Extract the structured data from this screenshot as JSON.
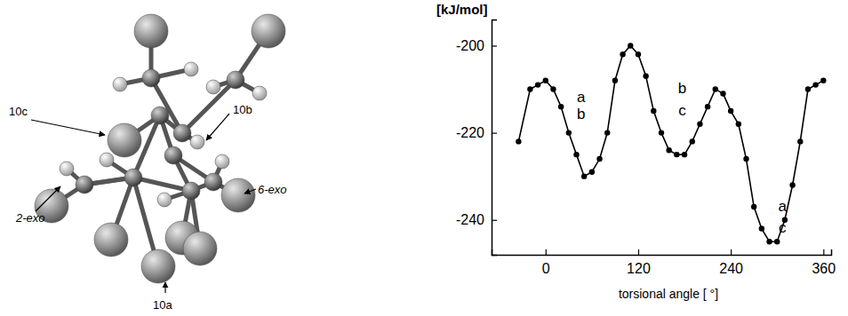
{
  "chart_data": {
    "type": "line",
    "ylabel": "[kJ/mol]",
    "xlabel": "torsional angle [ °]",
    "x": [
      -35,
      -20,
      -10,
      0,
      10,
      20,
      30,
      40,
      50,
      60,
      70,
      80,
      90,
      100,
      110,
      120,
      130,
      140,
      150,
      160,
      170,
      180,
      190,
      200,
      210,
      220,
      230,
      240,
      250,
      260,
      270,
      280,
      290,
      300,
      310,
      320,
      330,
      340,
      350,
      360
    ],
    "values": [
      -222,
      -210,
      -209,
      -208,
      -210,
      -214,
      -220,
      -225,
      -230,
      -229,
      -226,
      -220,
      -208,
      -202,
      -200,
      -202,
      -207,
      -215,
      -220,
      -224,
      -225,
      -225,
      -222,
      -218,
      -214,
      -210,
      -211,
      -215,
      -218,
      -226,
      -237,
      -242,
      -245,
      -245,
      -240,
      -232,
      -222,
      -210,
      -209,
      -208
    ],
    "color": "#000000",
    "marker": "circle",
    "line_style": "solid",
    "xlim": [
      -70,
      370
    ],
    "ylim": [
      -248,
      -194
    ],
    "xticks": [
      0,
      120,
      240,
      360
    ],
    "yticks": [
      -200,
      -220,
      -240
    ],
    "grid": false,
    "annotations": [
      {
        "text": "a",
        "x": 46,
        "y": -212
      },
      {
        "text": "b",
        "x": 46,
        "y": -216
      },
      {
        "text": "b",
        "x": 177,
        "y": -210
      },
      {
        "text": "c",
        "x": 177,
        "y": -215
      },
      {
        "text": "a",
        "x": 307,
        "y": -237
      },
      {
        "text": "c",
        "x": 307,
        "y": -242
      }
    ]
  },
  "molecule": {
    "labels": [
      "10c",
      "10b",
      "2-exo",
      "6-exo",
      "10a"
    ]
  }
}
